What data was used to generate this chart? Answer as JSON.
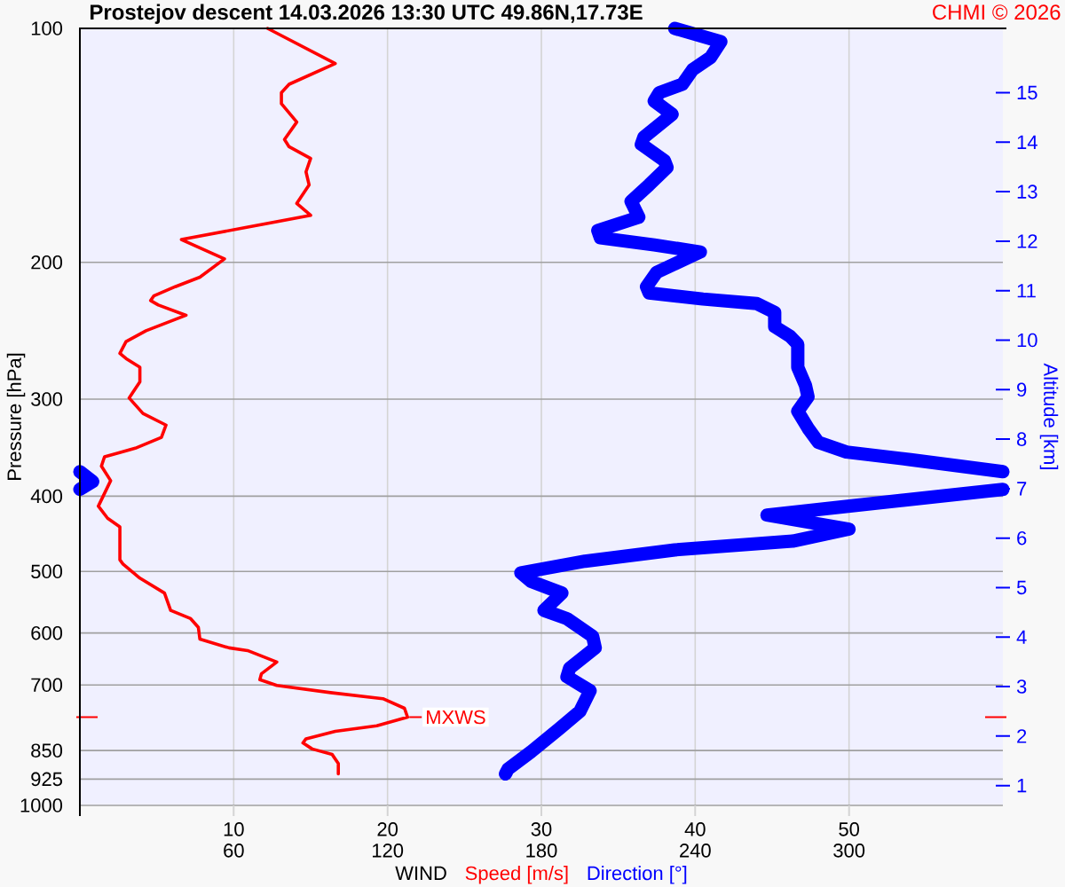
{
  "chart_data": {
    "type": "line",
    "title": "Prostejov descent 14.03.2026 13:30 UTC 49.86N,17.73E",
    "xlabel": "WIND",
    "ylabel": "Pressure [hPa]",
    "y2label": "Altitude [km]",
    "annotations": [
      "CHMI © 2026",
      {
        "text": "MXWS",
        "x": 21.3,
        "y": 770
      }
    ],
    "series": [
      {
        "name": "Speed [m/s]",
        "color": "#ff0000",
        "x": [
          12.2,
          16.6,
          13.6,
          13.1,
          13.1,
          14.1,
          13.3,
          13.6,
          15.0,
          14.7,
          14.9,
          14.1,
          15.0,
          6.6,
          9.4,
          7.8,
          6.2,
          4.8,
          4.6,
          5.1,
          6.9,
          4.3,
          3.0,
          2.6,
          3.0,
          3.9,
          3.9,
          3.4,
          3.2,
          4.1,
          5.6,
          5.3,
          3.6,
          1.6,
          1.4,
          2.0,
          1.2,
          1.8,
          2.6,
          2.6,
          2.8,
          3.9,
          5.5,
          5.9,
          7.2,
          7.7,
          7.8,
          9.7,
          10.9,
          12.8,
          11.8,
          11.7,
          12.8,
          16.3,
          19.7,
          21.1,
          21.3,
          19.3,
          16.6,
          14.7,
          14.5,
          15.1,
          16.4,
          16.8,
          16.8
        ],
        "values": [
          100,
          111,
          118,
          121,
          125,
          132,
          139,
          142,
          147,
          153,
          159,
          168,
          174,
          187,
          198,
          209,
          215,
          221,
          224,
          227,
          234,
          245,
          253,
          262,
          266,
          273,
          285,
          295,
          299,
          313,
          324,
          336,
          347,
          356,
          366,
          382,
          412,
          427,
          438,
          483,
          489,
          510,
          533,
          561,
          575,
          590,
          611,
          627,
          632,
          654,
          677,
          689,
          701,
          716,
          729,
          750,
          770,
          790,
          803,
          821,
          831,
          846,
          860,
          883,
          911
        ]
      },
      {
        "name": "Direction [°]",
        "color": "#0000ff",
        "axis": "x2",
        "x": [
          232,
          250,
          246,
          239,
          235,
          226,
          224,
          231,
          220,
          219,
          228,
          229,
          222,
          215,
          218,
          202,
          203,
          224,
          242,
          225,
          221,
          222,
          243,
          264,
          271,
          271,
          277,
          280,
          280,
          283,
          284,
          280,
          284,
          288,
          299,
          324,
          360,
          null,
          0,
          5,
          0,
          null,
          360,
          268,
          300,
          278,
          232,
          197,
          172,
          176,
          188,
          181,
          190,
          200,
          201,
          191,
          190,
          199,
          195,
          187,
          176,
          167,
          166
        ],
        "values": [
          100,
          104,
          109,
          113,
          118,
          121,
          124,
          129,
          138,
          141,
          148,
          151,
          159,
          167,
          175,
          182,
          186,
          190,
          194,
          206,
          215,
          219,
          223,
          226,
          232,
          242,
          249,
          255,
          273,
          288,
          298,
          311,
          327,
          341,
          351,
          359,
          372,
          null,
          372,
          383,
          392,
          null,
          392,
          423,
          441,
          457,
          469,
          485,
          502,
          515,
          533,
          561,
          575,
          606,
          627,
          666,
          683,
          712,
          757,
          797,
          853,
          898,
          911
        ]
      }
    ],
    "xlim": [
      0,
      60
    ],
    "xticks": [
      10,
      20,
      30,
      40,
      50
    ],
    "x2lim": [
      0,
      360
    ],
    "x2ticks": [
      60,
      120,
      180,
      240,
      300
    ],
    "ylim": [
      1000,
      100
    ],
    "yticks": [
      100,
      200,
      300,
      400,
      500,
      600,
      700,
      850,
      925,
      1000
    ],
    "y2lim": [
      0.6,
      16.3
    ],
    "y2ticks": [
      1,
      2,
      3,
      4,
      5,
      6,
      7,
      8,
      9,
      10,
      11,
      12,
      13,
      14,
      15
    ],
    "log": true,
    "grid": true,
    "legend": "bottom"
  }
}
